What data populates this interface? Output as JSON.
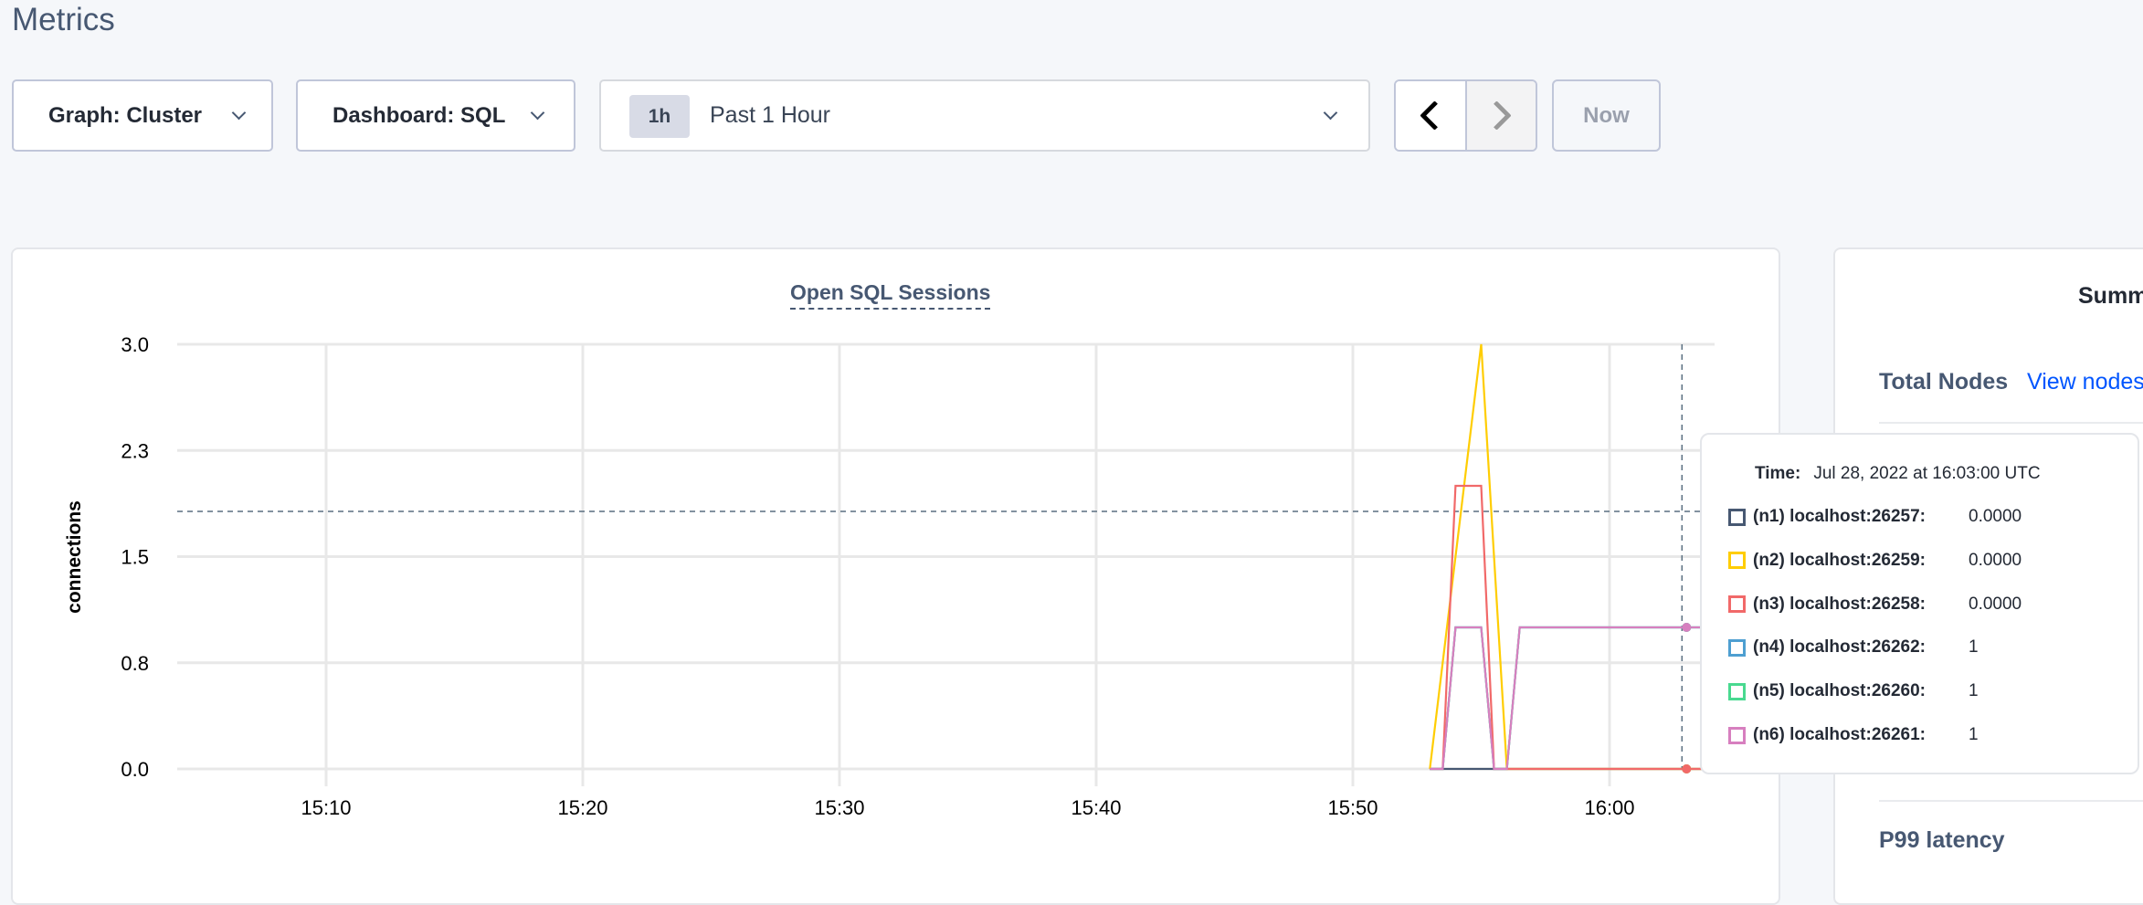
{
  "page": {
    "title": "Metrics"
  },
  "toolbar": {
    "graph_label": "Graph: Cluster",
    "dashboard_label": "Dashboard: SQL",
    "time_badge": "1h",
    "time_label": "Past 1 Hour",
    "prev_icon": "chevron-left-icon",
    "next_icon": "chevron-right-icon",
    "now_label": "Now"
  },
  "chart_data": {
    "type": "line",
    "title": "Open SQL Sessions",
    "ylabel": "connections",
    "xlabel": "",
    "xlim": [
      "15:04",
      "16:04"
    ],
    "ylim": [
      0,
      3
    ],
    "y_ticks": [
      "0.0",
      "0.8",
      "1.5",
      "2.3",
      "3.0"
    ],
    "y_tick_values": [
      0,
      0.75,
      1.5,
      2.25,
      3
    ],
    "x_ticks": [
      "15:10",
      "15:20",
      "15:30",
      "15:40",
      "15:50",
      "16:00"
    ],
    "grid": true,
    "hover_time": "16:03",
    "series": [
      {
        "name": "(n1) localhost:26257",
        "color": "#475872",
        "x": [
          "15:53:00",
          "15:55:00",
          "15:56:00",
          "16:03:00",
          "16:04:00"
        ],
        "y": [
          0,
          0,
          0,
          0,
          0
        ]
      },
      {
        "name": "(n4) localhost:26262",
        "color": "#4e9fd1",
        "x": [
          "15:53:00",
          "15:53:30",
          "15:54:00",
          "15:55:00",
          "15:55:30",
          "15:56:00",
          "15:56:30",
          "16:03:00",
          "16:04:00"
        ],
        "y": [
          0,
          0,
          1,
          1,
          0,
          0,
          1,
          1,
          1
        ]
      },
      {
        "name": "(n5) localhost:26260",
        "color": "#49d990",
        "x": [
          "15:53:00",
          "15:53:30",
          "15:54:00",
          "15:55:00",
          "15:55:30",
          "15:56:00",
          "15:56:30",
          "16:03:00",
          "16:04:00"
        ],
        "y": [
          0,
          0,
          1,
          1,
          0,
          0,
          1,
          1,
          1
        ]
      },
      {
        "name": "(n2) localhost:26259",
        "color": "#ffcd02",
        "x": [
          "15:53:00",
          "15:55:00",
          "15:56:00",
          "16:03:00",
          "16:04:00"
        ],
        "y": [
          0,
          3,
          0,
          0,
          0
        ]
      },
      {
        "name": "(n3) localhost:26258",
        "color": "#f16969",
        "x": [
          "15:53:00",
          "15:53:30",
          "15:54:00",
          "15:55:00",
          "15:55:30",
          "16:03:00",
          "16:04:00"
        ],
        "y": [
          0,
          0,
          2,
          2,
          0,
          0,
          0
        ]
      },
      {
        "name": "(n6) localhost:26261",
        "color": "#d77fbf",
        "x": [
          "15:53:00",
          "15:53:30",
          "15:54:00",
          "15:55:00",
          "15:55:30",
          "15:56:00",
          "15:56:30",
          "16:03:00",
          "16:04:00"
        ],
        "y": [
          0,
          0,
          1,
          1,
          0,
          0,
          1,
          1,
          1
        ]
      }
    ]
  },
  "tooltip": {
    "time_label": "Time:",
    "time_value": "Jul 28, 2022 at 16:03:00 UTC",
    "rows": [
      {
        "name": "(n1) localhost:26257:",
        "value": "0.0000",
        "color": "#475872"
      },
      {
        "name": "(n2) localhost:26259:",
        "value": "0.0000",
        "color": "#ffcd02"
      },
      {
        "name": "(n3) localhost:26258:",
        "value": "0.0000",
        "color": "#f16969"
      },
      {
        "name": "(n4) localhost:26262:",
        "value": "1",
        "color": "#4e9fd1"
      },
      {
        "name": "(n5) localhost:26260:",
        "value": "1",
        "color": "#49d990"
      },
      {
        "name": "(n6) localhost:26261:",
        "value": "1",
        "color": "#d77fbf"
      }
    ]
  },
  "summary": {
    "title": "Summary",
    "total_nodes_label": "Total Nodes",
    "view_nodes_link": "View nodes",
    "p99_label": "P99 latency"
  }
}
